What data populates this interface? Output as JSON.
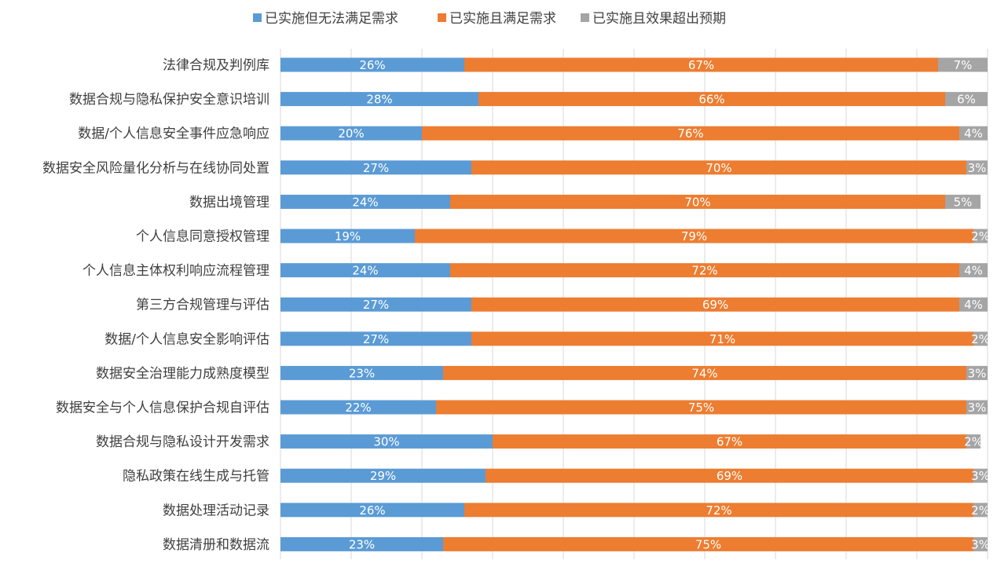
{
  "chart_data": {
    "type": "bar",
    "orientation": "horizontal",
    "stacked": true,
    "percent_stacked": true,
    "legend_position": "top",
    "grid": true,
    "xlim": [
      0,
      100
    ],
    "categories": [
      "法律合规及判例库",
      "数据合规与隐私保护安全意识培训",
      "数据/个人信息安全事件应急响应",
      "数据安全风险量化分析与在线协同处置",
      "数据出境管理",
      "个人信息同意授权管理",
      "个人信息主体权利响应流程管理",
      "第三方合规管理与评估",
      "数据/个人信息安全影响评估",
      "数据安全治理能力成熟度模型",
      "数据安全与个人信息保护合规自评估",
      "数据合规与隐私设计开发需求",
      "隐私政策在线生成与托管",
      "数据处理活动记录",
      "数据清册和数据流"
    ],
    "series": [
      {
        "name": "已实施但无法满足需求",
        "color": "#5B9BD5",
        "values": [
          26,
          28,
          20,
          27,
          24,
          19,
          24,
          27,
          27,
          23,
          22,
          30,
          29,
          26,
          23
        ],
        "labels": [
          "26%",
          "28%",
          "20%",
          "27%",
          "24%",
          "19%",
          "24%",
          "27%",
          "27%",
          "23%",
          "22%",
          "30%",
          "29%",
          "26%",
          "23%"
        ]
      },
      {
        "name": "已实施且满足需求",
        "color": "#ED7D31",
        "values": [
          67,
          66,
          76,
          70,
          70,
          79,
          72,
          69,
          71,
          74,
          75,
          67,
          69,
          72,
          75
        ],
        "labels": [
          "67%",
          "66%",
          "76%",
          "70%",
          "70%",
          "79%",
          "72%",
          "69%",
          "71%",
          "74%",
          "75%",
          "67%",
          "69%",
          "72%",
          "75%"
        ]
      },
      {
        "name": "已实施且效果超出预期",
        "color": "#A5A5A5",
        "values": [
          7,
          6,
          4,
          3,
          5,
          2,
          4,
          4,
          2,
          3,
          3,
          2,
          3,
          2,
          3
        ],
        "labels": [
          "7%",
          "6%",
          "4%",
          "3%",
          "5%",
          "2%",
          "4%",
          "4%",
          "2%",
          "3%",
          "3%",
          "2%",
          "3%",
          "2%",
          "3%"
        ]
      }
    ]
  }
}
